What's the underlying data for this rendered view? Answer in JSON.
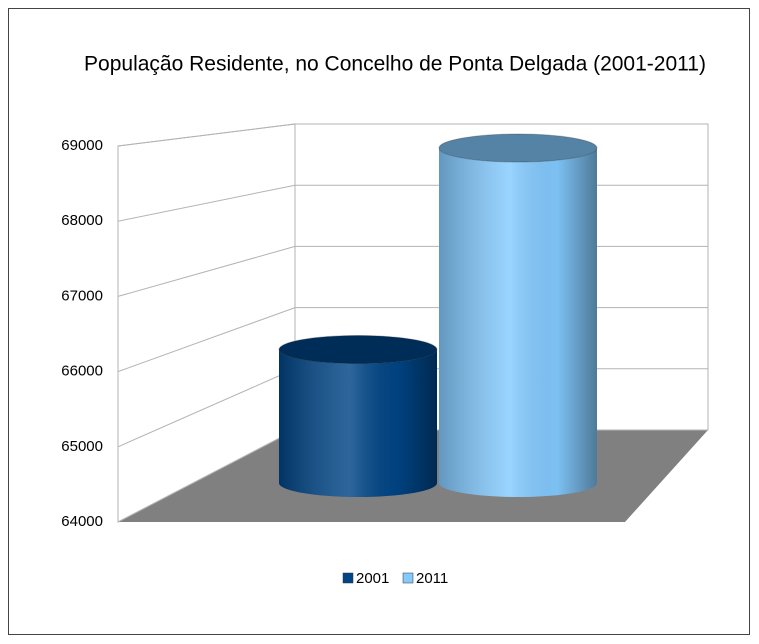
{
  "chart_data": {
    "type": "bar",
    "title": "População Residente, no Concelho de Ponta Delgada (2001-2011)",
    "series": [
      {
        "name": "2001",
        "color": "#004586",
        "values": [
          65854
        ]
      },
      {
        "name": "2011",
        "color": "#83caff",
        "values": [
          68809
        ]
      }
    ],
    "ylim": [
      64000,
      69000
    ],
    "yticks": [
      64000,
      65000,
      66000,
      67000,
      68000,
      69000
    ],
    "grid": true,
    "legend": "bottom"
  }
}
